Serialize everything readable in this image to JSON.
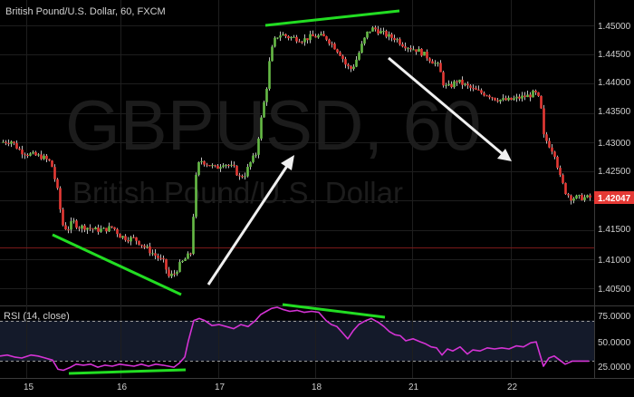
{
  "chart_data": [
    {
      "type": "candlestick",
      "title": "British Pound/U.S. Dollar, 60, FXCM",
      "watermark": [
        "GBPUSD, 60",
        "British Pound/U.S. Dollar"
      ],
      "symbol": "GBPUSD",
      "interval": "60",
      "ylim": [
        1.4025,
        1.4525
      ],
      "yticks": [
        "1.45000",
        "1.44500",
        "1.44000",
        "1.43500",
        "1.43000",
        "1.42500",
        "1.42000",
        "1.41500",
        "1.41000",
        "1.40500"
      ],
      "last_price": "1.42047",
      "last_price_color": "#e53935",
      "horizontal_line": 1.412,
      "x_tick_labels": [
        "15",
        "16",
        "17",
        "18",
        "21",
        "22"
      ],
      "up_color": "#66bb46",
      "down_color": "#e53935",
      "wick_color": "#bdbdbd",
      "close_path": [
        [
          0,
          1.43
        ],
        [
          12,
          1.4302
        ],
        [
          22,
          1.4285
        ],
        [
          30,
          1.428
        ],
        [
          46,
          1.4275
        ],
        [
          56,
          1.4265
        ],
        [
          64,
          1.421
        ],
        [
          68,
          1.416
        ],
        [
          74,
          1.415
        ],
        [
          80,
          1.4165
        ],
        [
          86,
          1.4155
        ],
        [
          94,
          1.4155
        ],
        [
          104,
          1.415
        ],
        [
          114,
          1.415
        ],
        [
          124,
          1.4155
        ],
        [
          132,
          1.414
        ],
        [
          140,
          1.4135
        ],
        [
          148,
          1.4135
        ],
        [
          156,
          1.4125
        ],
        [
          164,
          1.4115
        ],
        [
          172,
          1.4105
        ],
        [
          180,
          1.4095
        ],
        [
          186,
          1.407
        ],
        [
          192,
          1.4075
        ],
        [
          198,
          1.409
        ],
        [
          204,
          1.41
        ],
        [
          210,
          1.411
        ],
        [
          216,
          1.424
        ],
        [
          220,
          1.427
        ],
        [
          226,
          1.4265
        ],
        [
          232,
          1.426
        ],
        [
          238,
          1.4255
        ],
        [
          246,
          1.4265
        ],
        [
          252,
          1.426
        ],
        [
          258,
          1.4255
        ],
        [
          264,
          1.424
        ],
        [
          270,
          1.4245
        ],
        [
          276,
          1.4265
        ],
        [
          282,
          1.428
        ],
        [
          288,
          1.434
        ],
        [
          294,
          1.4395
        ],
        [
          298,
          1.445
        ],
        [
          304,
          1.448
        ],
        [
          310,
          1.4485
        ],
        [
          318,
          1.448
        ],
        [
          326,
          1.4478
        ],
        [
          334,
          1.4475
        ],
        [
          342,
          1.448
        ],
        [
          352,
          1.4482
        ],
        [
          360,
          1.4478
        ],
        [
          368,
          1.4465
        ],
        [
          376,
          1.445
        ],
        [
          382,
          1.443
        ],
        [
          388,
          1.4425
        ],
        [
          394,
          1.4445
        ],
        [
          400,
          1.447
        ],
        [
          406,
          1.449
        ],
        [
          412,
          1.4495
        ],
        [
          418,
          1.449
        ],
        [
          424,
          1.4485
        ],
        [
          430,
          1.448
        ],
        [
          436,
          1.4478
        ],
        [
          444,
          1.4468
        ],
        [
          452,
          1.4462
        ],
        [
          460,
          1.4458
        ],
        [
          468,
          1.445
        ],
        [
          476,
          1.444
        ],
        [
          484,
          1.443
        ],
        [
          490,
          1.4395
        ],
        [
          496,
          1.4395
        ],
        [
          504,
          1.4405
        ],
        [
          510,
          1.44
        ],
        [
          516,
          1.4395
        ],
        [
          522,
          1.439
        ],
        [
          530,
          1.4385
        ],
        [
          538,
          1.4382
        ],
        [
          546,
          1.4375
        ],
        [
          554,
          1.4372
        ],
        [
          562,
          1.4372
        ],
        [
          570,
          1.4375
        ],
        [
          578,
          1.4378
        ],
        [
          584,
          1.438
        ],
        [
          590,
          1.4385
        ],
        [
          596,
          1.437
        ],
        [
          600,
          1.431
        ],
        [
          606,
          1.4295
        ],
        [
          612,
          1.428
        ],
        [
          618,
          1.424
        ],
        [
          624,
          1.4215
        ],
        [
          630,
          1.4205
        ],
        [
          636,
          1.4205
        ],
        [
          642,
          1.4205
        ],
        [
          650,
          1.4205
        ]
      ]
    },
    {
      "type": "line",
      "title": "RSI (14, close)",
      "ylim": [
        15,
        90
      ],
      "yticks": [
        "75.0000",
        "50.0000",
        "25.0000"
      ],
      "levels": [
        70,
        30
      ],
      "line_color": "#d433d4",
      "values": [
        [
          0,
          35
        ],
        [
          8,
          36
        ],
        [
          16,
          34
        ],
        [
          24,
          33
        ],
        [
          34,
          36
        ],
        [
          42,
          35
        ],
        [
          50,
          33
        ],
        [
          58,
          31
        ],
        [
          64,
          22
        ],
        [
          70,
          21
        ],
        [
          78,
          24
        ],
        [
          84,
          27
        ],
        [
          92,
          26
        ],
        [
          100,
          27
        ],
        [
          108,
          24
        ],
        [
          116,
          26
        ],
        [
          124,
          25
        ],
        [
          132,
          27
        ],
        [
          140,
          26
        ],
        [
          148,
          25
        ],
        [
          156,
          27
        ],
        [
          164,
          25
        ],
        [
          172,
          27
        ],
        [
          180,
          26
        ],
        [
          186,
          25
        ],
        [
          192,
          24
        ],
        [
          198,
          28
        ],
        [
          204,
          34
        ],
        [
          208,
          50
        ],
        [
          214,
          70
        ],
        [
          220,
          72
        ],
        [
          226,
          70
        ],
        [
          234,
          65
        ],
        [
          242,
          66
        ],
        [
          250,
          64
        ],
        [
          258,
          62
        ],
        [
          266,
          66
        ],
        [
          274,
          64
        ],
        [
          282,
          70
        ],
        [
          288,
          76
        ],
        [
          294,
          79
        ],
        [
          300,
          82
        ],
        [
          306,
          83
        ],
        [
          312,
          81
        ],
        [
          320,
          79
        ],
        [
          328,
          80
        ],
        [
          336,
          78
        ],
        [
          344,
          79
        ],
        [
          352,
          78
        ],
        [
          360,
          70
        ],
        [
          366,
          66
        ],
        [
          372,
          64
        ],
        [
          378,
          58
        ],
        [
          384,
          52
        ],
        [
          390,
          60
        ],
        [
          396,
          66
        ],
        [
          404,
          70
        ],
        [
          410,
          72
        ],
        [
          418,
          68
        ],
        [
          424,
          64
        ],
        [
          430,
          59
        ],
        [
          436,
          56
        ],
        [
          442,
          55
        ],
        [
          448,
          50
        ],
        [
          456,
          52
        ],
        [
          464,
          49
        ],
        [
          470,
          47
        ],
        [
          476,
          44
        ],
        [
          482,
          43
        ],
        [
          488,
          36
        ],
        [
          494,
          42
        ],
        [
          500,
          40
        ],
        [
          508,
          44
        ],
        [
          516,
          37
        ],
        [
          522,
          41
        ],
        [
          530,
          40
        ],
        [
          538,
          43
        ],
        [
          546,
          42
        ],
        [
          554,
          43
        ],
        [
          562,
          42
        ],
        [
          570,
          45
        ],
        [
          578,
          44
        ],
        [
          586,
          48
        ],
        [
          592,
          49
        ],
        [
          596,
          37
        ],
        [
          600,
          25
        ],
        [
          606,
          33
        ],
        [
          612,
          35
        ],
        [
          618,
          31
        ],
        [
          624,
          27
        ],
        [
          632,
          30
        ],
        [
          640,
          30
        ],
        [
          650,
          30
        ]
      ]
    }
  ],
  "annotations": {
    "trendline_color": "#22dd22",
    "arrow_color": "#f0f0f0"
  }
}
